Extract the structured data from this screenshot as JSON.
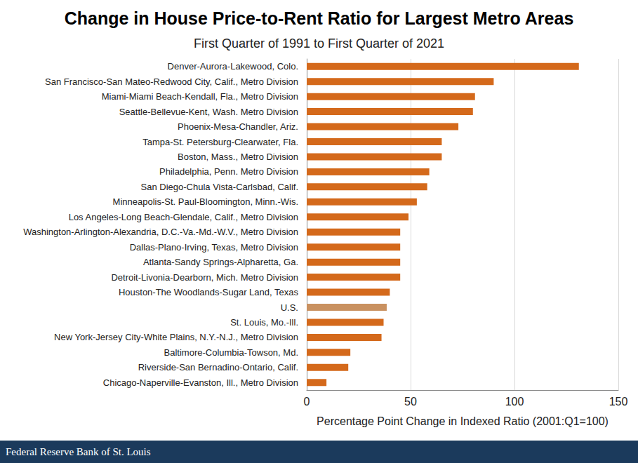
{
  "chart_data": {
    "type": "bar",
    "orientation": "horizontal",
    "title": "Change in House Price-to-Rent Ratio for Largest Metro Areas",
    "subtitle": "First Quarter of 1991 to First Quarter of 2021",
    "xlabel": "Percentage Point Change in Indexed Ratio (2001:Q1=100)",
    "footer": "Federal Reserve Bank of St. Louis",
    "categories": [
      "Denver-Aurora-Lakewood, Colo.",
      "San Francisco-San Mateo-Redwood City, Calif., Metro Division",
      "Miami-Miami Beach-Kendall, Fla., Metro Division",
      "Seattle-Bellevue-Kent, Wash. Metro Division",
      "Phoenix-Mesa-Chandler, Ariz.",
      "Tampa-St. Petersburg-Clearwater, Fla.",
      "Boston, Mass., Metro Division",
      "Philadelphia, Penn. Metro Division",
      "San Diego-Chula Vista-Carlsbad, Calif.",
      "Minneapolis-St. Paul-Bloomington, Minn.-Wis.",
      "Los Angeles-Long Beach-Glendale, Calif., Metro Division",
      "Washington-Arlington-Alexandria, D.C.-Va.-Md.-W.V., Metro Division",
      "Dallas-Plano-Irving, Texas, Metro Division",
      "Atlanta-Sandy Springs-Alpharetta, Ga.",
      "Detroit-Livonia-Dearborn, Mich. Metro Division",
      "Houston-The Woodlands-Sugar Land, Texas",
      "U.S.",
      "St. Louis, Mo.-Ill.",
      "New York-Jersey City-White Plains, N.Y.-N.J., Metro Division",
      "Baltimore-Columbia-Towson, Md.",
      "Riverside-San Bernadino-Ontario, Calif.",
      "Chicago-Naperville-Evanston, Ill., Metro Division"
    ],
    "values": [
      131,
      90,
      81,
      80,
      73,
      65,
      65,
      59,
      58,
      53,
      49,
      45,
      45,
      45,
      45,
      40,
      38.5,
      37,
      36,
      21,
      20,
      9.5
    ],
    "colors": [
      "#d4691b",
      "#d4691b",
      "#d4691b",
      "#d4691b",
      "#d4691b",
      "#d4691b",
      "#d4691b",
      "#d4691b",
      "#d4691b",
      "#d4691b",
      "#d4691b",
      "#d4691b",
      "#d4691b",
      "#d4691b",
      "#d4691b",
      "#d4691b",
      "#c99160",
      "#d4691b",
      "#d4691b",
      "#d4691b",
      "#d4691b",
      "#d4691b"
    ],
    "xlim": [
      0,
      150
    ],
    "xticks": [
      0,
      50,
      100,
      150
    ],
    "grid": true
  }
}
